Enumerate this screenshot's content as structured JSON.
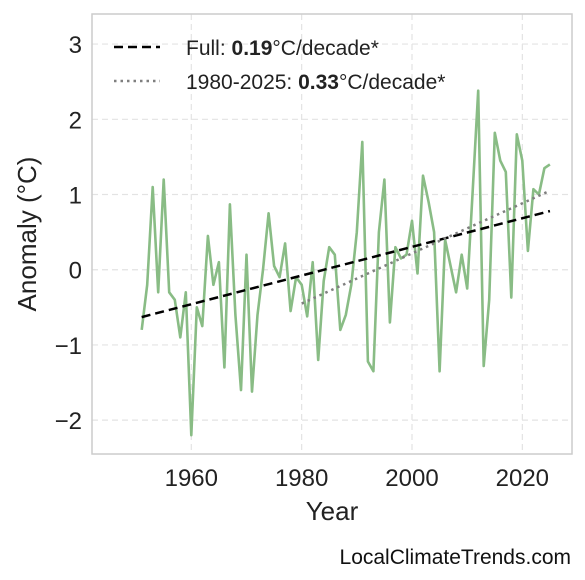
{
  "chart_data": {
    "type": "line",
    "xlabel": "Year",
    "ylabel": "Anomaly (°C)",
    "xlim": [
      1942,
      2029
    ],
    "ylim": [
      -2.45,
      3.4
    ],
    "xticks": [
      1960,
      1980,
      2000,
      2020
    ],
    "xtick_labels": [
      "1960",
      "1980",
      "2000",
      "2020"
    ],
    "yticks": [
      -2,
      -1,
      0,
      1,
      2,
      3
    ],
    "ytick_labels": [
      "−2",
      "−1",
      "0",
      "1",
      "2",
      "3"
    ],
    "grid": true,
    "legend_position": "top-left",
    "series": [
      {
        "x": [
          1951,
          1952,
          1953,
          1954,
          1955,
          1956,
          1957,
          1958,
          1959,
          1960,
          1961,
          1962,
          1963,
          1964,
          1965,
          1966,
          1967,
          1968,
          1969,
          1970,
          1971,
          1972,
          1973,
          1974,
          1975,
          1976,
          1977,
          1978,
          1979,
          1980,
          1981,
          1982,
          1983,
          1984,
          1985,
          1986,
          1987,
          1988,
          1989,
          1990,
          1991,
          1992,
          1993,
          1994,
          1995,
          1996,
          1997,
          1998,
          1999,
          2000,
          2001,
          2002,
          2003,
          2004,
          2005,
          2006,
          2007,
          2008,
          2009,
          2010,
          2011,
          2012,
          2013,
          2014,
          2015,
          2016,
          2017,
          2018,
          2019,
          2020,
          2021,
          2022,
          2023,
          2024,
          2025
        ],
        "y": [
          -0.8,
          -0.2,
          1.1,
          -0.3,
          1.2,
          -0.3,
          -0.4,
          -0.9,
          -0.3,
          -2.2,
          -0.5,
          -0.75,
          0.45,
          -0.2,
          0.1,
          -1.3,
          0.87,
          -0.6,
          -1.6,
          0.2,
          -1.62,
          -0.6,
          0.0,
          0.75,
          0.05,
          -0.1,
          0.35,
          -0.55,
          -0.1,
          -0.2,
          -0.62,
          0.1,
          -1.2,
          -0.15,
          0.3,
          0.2,
          -0.8,
          -0.6,
          -0.2,
          0.5,
          1.7,
          -1.22,
          -1.35,
          0.5,
          1.2,
          -0.7,
          0.3,
          0.15,
          0.2,
          0.65,
          -0.05,
          1.25,
          0.9,
          0.5,
          -1.35,
          0.4,
          0.05,
          -0.3,
          0.2,
          -0.25,
          1.05,
          2.38,
          -1.28,
          -0.4,
          1.82,
          1.45,
          1.3,
          -0.37,
          1.8,
          1.45,
          0.25,
          1.07,
          1.0,
          1.35,
          1.4
        ],
        "color": "#89bc85"
      },
      {
        "name": "Full:",
        "value": "0.19",
        "unit": "°C/decade*",
        "x": [
          1951,
          2025
        ],
        "y": [
          -0.63,
          0.78
        ],
        "color": "#000000",
        "style": "dashed"
      },
      {
        "name": "1980-2025:",
        "value": "0.33",
        "unit": "°C/decade*",
        "x": [
          1980,
          2025
        ],
        "y": [
          -0.45,
          1.05
        ],
        "color": "#7f7f7f",
        "style": "dotted"
      }
    ]
  },
  "footer": {
    "source": "LocalClimateTrends.com"
  }
}
